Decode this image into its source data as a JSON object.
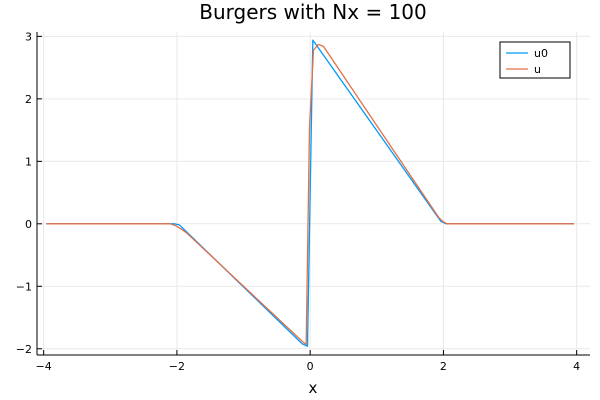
{
  "chart_data": {
    "type": "line",
    "title": "Burgers with Nx = 100",
    "xlabel": "x",
    "ylabel": "",
    "xlim": [
      -4.1,
      4.2
    ],
    "ylim": [
      -2.1,
      3.07
    ],
    "xticks": [
      -4,
      -2,
      0,
      2,
      4
    ],
    "xtick_labels": [
      "−4",
      "−2",
      "0",
      "2",
      "4"
    ],
    "yticks": [
      -2,
      -1,
      0,
      1,
      2,
      3
    ],
    "ytick_labels": [
      "−2",
      "−1",
      "0",
      "1",
      "2",
      "3"
    ],
    "grid": true,
    "legend_position": "top-right",
    "series": [
      {
        "name": "u0",
        "color": "#009AFA",
        "x": [
          -3.96,
          -2.04,
          -1.96,
          -0.12,
          -0.04,
          0.04,
          0.12,
          1.96,
          2.04,
          3.96
        ],
        "y": [
          0,
          0,
          -0.02,
          -1.92,
          -1.96,
          2.94,
          2.82,
          0.04,
          0,
          0
        ]
      },
      {
        "name": "u",
        "color": "#E26F46",
        "x": [
          -3.96,
          -2.1,
          -2.02,
          -1.94,
          -1.85,
          -0.12,
          -0.06,
          -0.01,
          0.05,
          0.12,
          0.2,
          1.93,
          2.0,
          2.06,
          2.15,
          3.96
        ],
        "y": [
          0,
          0,
          -0.03,
          -0.08,
          -0.15,
          -1.88,
          -1.93,
          1.55,
          2.78,
          2.87,
          2.84,
          0.1,
          0.03,
          0.0,
          0,
          0
        ]
      }
    ]
  }
}
